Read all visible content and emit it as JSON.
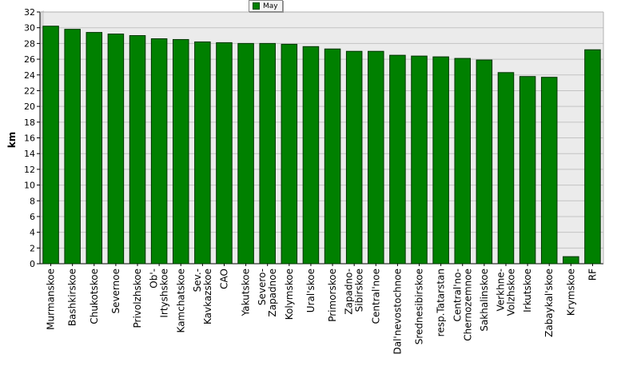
{
  "chart_data": {
    "type": "bar",
    "title": "",
    "xlabel": "",
    "ylabel": "km",
    "ylim": [
      0,
      32
    ],
    "yticks": [
      0,
      2,
      4,
      6,
      8,
      10,
      12,
      14,
      16,
      18,
      20,
      22,
      24,
      26,
      28,
      30,
      32
    ],
    "grid": true,
    "legend_position": "top-center",
    "categories": [
      "Murmanskoe",
      "Bashkirskoe",
      "Chukotskoe",
      "Severnoe",
      "Privolzhskoe",
      "Ob'-Irtyshskoe",
      "Kamchatskoe",
      "Sev.-Kavkazskoe",
      "CAO",
      "Yakutskoe",
      "Severo-Zapadnoe",
      "Kolymskoe",
      "Ural'skoe",
      "Primorskoe",
      "Zapadno-Sibirskoe",
      "Central'noe",
      "Dal'nevostochnoe",
      "Srednesibirskoe",
      "resp.Tatarstan",
      "Central'no-Chernozemnoe",
      "Sakhalinskoe",
      "Verkhne-Volzhskoe",
      "Irkutskoe",
      "Zabaykal'skoe",
      "Krymskoe",
      "RF"
    ],
    "category_lines": [
      [
        "Murmanskoe"
      ],
      [
        "Bashkirskoe"
      ],
      [
        "Chukotskoe"
      ],
      [
        "Severnoe"
      ],
      [
        "Privolzhskoe"
      ],
      [
        "Ob'-",
        "Irtyshskoe"
      ],
      [
        "Kamchatskoe"
      ],
      [
        "Sev.-",
        "Kavkazskoe"
      ],
      [
        "CAO"
      ],
      [
        "Yakutskoe"
      ],
      [
        "Severo-",
        "Zapadnoe"
      ],
      [
        "Kolymskoe"
      ],
      [
        "Ural'skoe"
      ],
      [
        "Primorskoe"
      ],
      [
        "Zapadno-",
        "Sibirskoe"
      ],
      [
        "Central'noe"
      ],
      [
        "Dal'nevostochnoe"
      ],
      [
        "Srednesibirskoe"
      ],
      [
        "resp.Tatarstan"
      ],
      [
        "Central'no-",
        "Chernozemnoe"
      ],
      [
        "Sakhalinskoe"
      ],
      [
        "Verkhne-",
        "Volzhskoe"
      ],
      [
        "Irkutskoe"
      ],
      [
        "Zabaykal'skoe"
      ],
      [
        "Krymskoe"
      ],
      [
        "RF"
      ]
    ],
    "series": [
      {
        "name": "May",
        "values": [
          30.2,
          29.8,
          29.4,
          29.2,
          29.0,
          28.6,
          28.5,
          28.2,
          28.1,
          28.0,
          28.0,
          27.9,
          27.6,
          27.3,
          27.0,
          27.0,
          26.5,
          26.4,
          26.3,
          26.1,
          25.9,
          24.3,
          23.8,
          23.7,
          0.9,
          27.2
        ]
      }
    ],
    "colors": {
      "bar": "#008000",
      "bar_outline": "#003300",
      "plot_background": "#ebebeb",
      "grid": "#c3c3c3"
    }
  }
}
